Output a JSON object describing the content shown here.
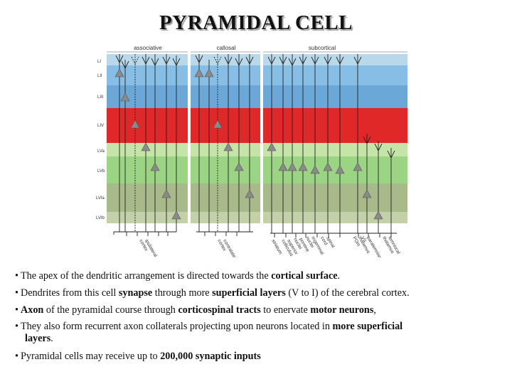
{
  "title": "PYRAMIDAL CELL",
  "figure": {
    "panels": [
      "associative",
      "callosal",
      "subcortical"
    ],
    "layers": [
      "LI",
      "LII",
      "LIII",
      "LIV",
      "LVa",
      "LVb",
      "LVIa",
      "LVIb"
    ],
    "targets": {
      "ipsilateral": [
        "ipsilateral",
        "cortex"
      ],
      "contralateral": [
        "contralateral",
        "cortex"
      ],
      "striatum": [
        "striatum"
      ],
      "superior": [
        "superior",
        "colliculus"
      ],
      "pontine": [
        "pontine",
        "nuclei"
      ],
      "trigeminal": [
        "trigeminal",
        "nuclei"
      ],
      "spinal": [
        "spinal",
        "cord"
      ],
      "pom": [
        "thalamus",
        "POm"
      ],
      "vii": [
        "paralemniscal",
        "VII"
      ],
      "lemniscal": [
        "lemniscal",
        "thalamus"
      ]
    },
    "colors": {
      "layer_light_blue": "#b9d8ea",
      "layer_blue": "#79b6e2",
      "layer_blue2": "#6ba8d8",
      "layer_red": "#e02828",
      "layer_light_green": "#c5e5a8",
      "layer_green": "#9bd483",
      "layer_olive": "#a8b98a",
      "layer_pale_olive": "#c3d0a8",
      "cell": "#8a8a8a",
      "line": "#222222"
    }
  },
  "bullets": {
    "b1": {
      "t1": "The apex of the dendritic arrangement is directed towards the ",
      "b1": "cortical surface",
      "t2": "."
    },
    "b2": {
      "t1": "Dendrites from this cell ",
      "b1": "synapse",
      "t2": " through more ",
      "b2": "superficial layers",
      "t3": " (V to I) of the cerebral cortex."
    },
    "b3": {
      "b1": "Axon",
      "t1": " of the pyramidal course through ",
      "b2": "corticospinal tracts",
      "t2": " to enervate ",
      "b3": "motor neurons",
      "t3": ","
    },
    "b4": {
      "t1": "They also form recurrent axon collaterals projecting upon neurons located in ",
      "b1": "more superficial",
      "b2": "layers",
      "t2": "."
    },
    "b5": {
      "t1": "Pyramidal cells may receive up to ",
      "b1": "200,000 synaptic inputs"
    }
  }
}
